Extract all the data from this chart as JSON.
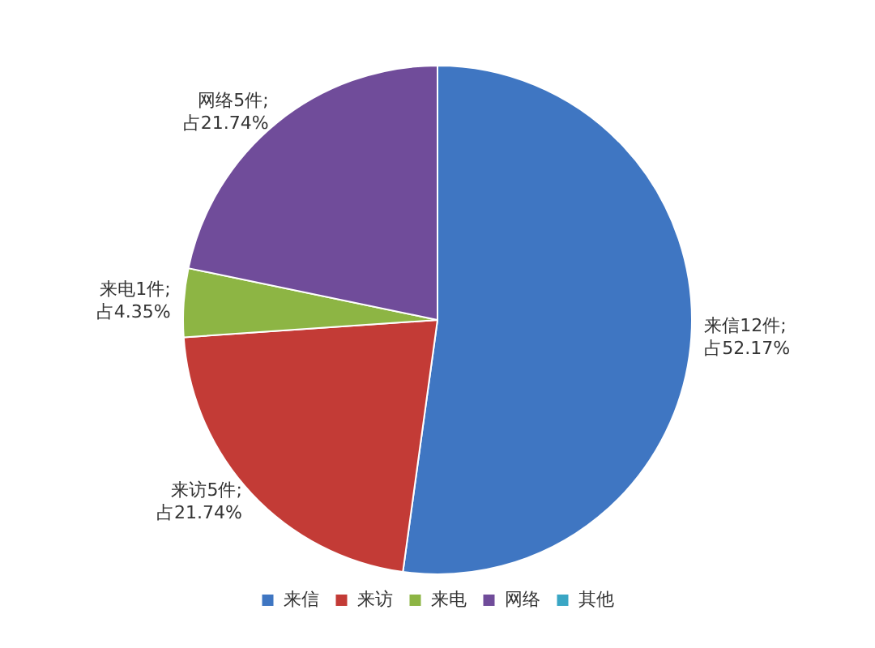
{
  "chart_data": {
    "type": "pie",
    "categories": [
      "来信",
      "来访",
      "来电",
      "网络",
      "其他"
    ],
    "values": [
      12,
      5,
      1,
      5,
      0
    ],
    "value_labels": [
      "来信12件;\n占52.17%",
      "来访5件;\n占21.74%",
      "来电1件;\n占4.35%",
      "网络5件;\n占21.74%",
      null
    ],
    "colors": [
      "#3f76c2",
      "#c33b36",
      "#8db544",
      "#704c9a",
      "#3aa6c4"
    ],
    "legend": "bottom"
  }
}
